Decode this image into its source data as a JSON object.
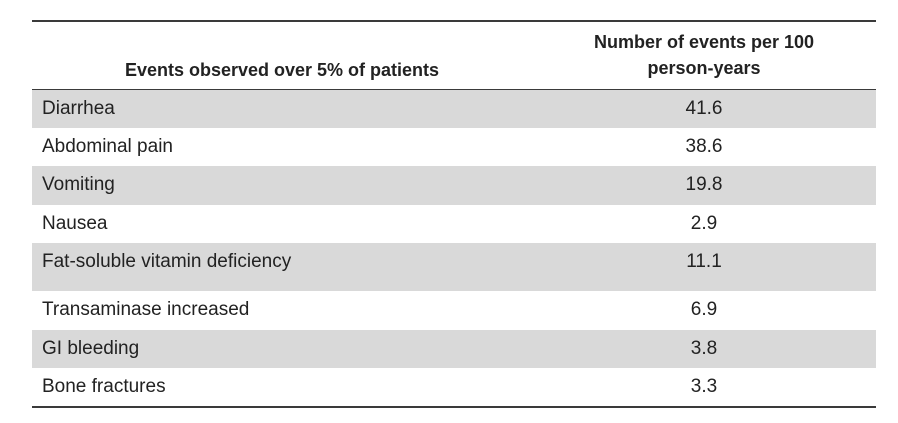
{
  "table": {
    "headers": {
      "event": "Events observed over 5% of patients",
      "rate_line1": "Number of events per 100",
      "rate_line2": "person-years"
    },
    "rows": [
      {
        "event": "Diarrhea",
        "rate": "41.6"
      },
      {
        "event": "Abdominal pain",
        "rate": "38.6"
      },
      {
        "event": "Vomiting",
        "rate": "19.8"
      },
      {
        "event": "Nausea",
        "rate": "2.9"
      },
      {
        "event": "Fat-soluble vitamin deficiency",
        "rate": "11.1"
      },
      {
        "event": "Transaminase increased",
        "rate": "6.9"
      },
      {
        "event": "GI bleeding",
        "rate": "3.8"
      },
      {
        "event": "Bone fractures",
        "rate": "3.3"
      }
    ]
  }
}
